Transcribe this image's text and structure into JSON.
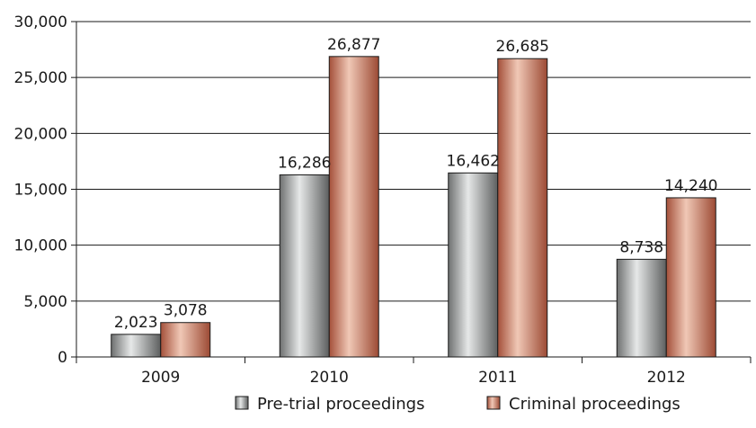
{
  "chart_data": {
    "type": "bar",
    "title": "",
    "xlabel": "",
    "ylabel": "",
    "categories": [
      "2009",
      "2010",
      "2011",
      "2012"
    ],
    "series": [
      {
        "name": "Pre-trial proceedings",
        "values": [
          2023,
          16286,
          16462,
          8738
        ],
        "labels": [
          "2,023",
          "16,286",
          "16,462",
          "8,738"
        ],
        "color": "#a8aaaa"
      },
      {
        "name": "Criminal proceedings",
        "values": [
          3078,
          26877,
          26685,
          14240
        ],
        "labels": [
          "3,078",
          "26,877",
          "26,685",
          "14,240"
        ],
        "color": "#c8775c"
      }
    ],
    "ylim": [
      0,
      30000
    ],
    "yticks": [
      0,
      5000,
      10000,
      15000,
      20000,
      25000,
      30000
    ],
    "ytick_labels": [
      "0",
      "5,000",
      "10,000",
      "15,000",
      "20,000",
      "25,000",
      "30,000"
    ],
    "grid": true,
    "legend_position": "bottom"
  }
}
